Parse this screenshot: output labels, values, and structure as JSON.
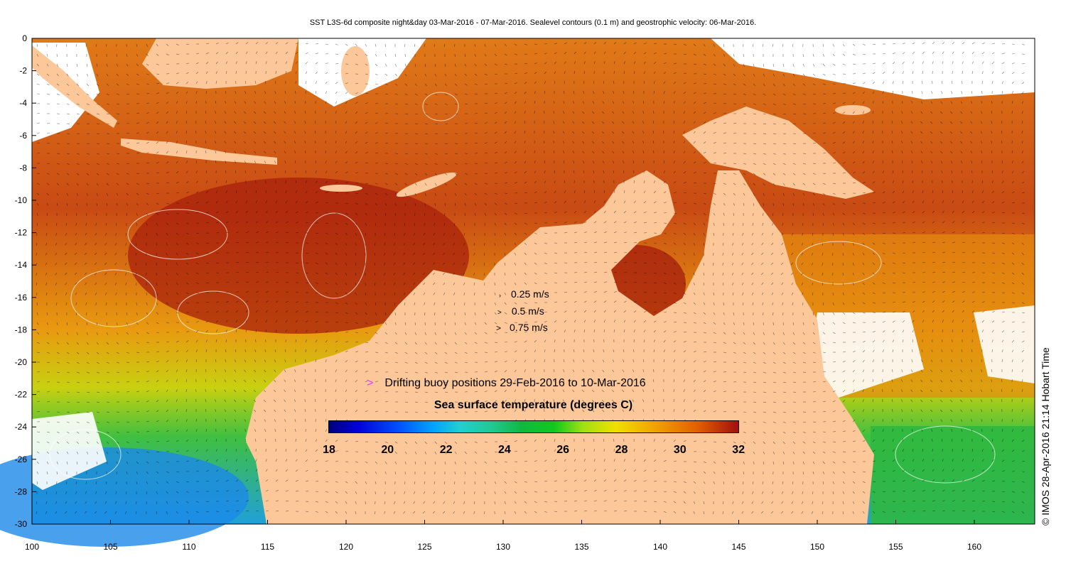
{
  "title": "SST L3S-6d composite night&day 03-Mar-2016 - 07-Mar-2016. Sealevel contours (0.1 m) and geostrophic velocity: 06-Mar-2016.",
  "axes": {
    "x_ticks": [
      "100",
      "105",
      "110",
      "115",
      "120",
      "125",
      "130",
      "135",
      "140",
      "145",
      "150",
      "155",
      "160"
    ],
    "y_ticks": [
      "0",
      "-2",
      "-4",
      "-6",
      "-8",
      "-10",
      "-12",
      "-14",
      "-16",
      "-18",
      "-20",
      "-22",
      "-24",
      "-26",
      "-28",
      "-30"
    ]
  },
  "velocity_legend": [
    "0.25 m/s",
    "0.5 m/s",
    "0.75 m/s"
  ],
  "buoy_legend": {
    "marker": ">",
    "text": "Drifting buoy positions 29-Feb-2016 to 10-Mar-2016"
  },
  "colorbar": {
    "title": "Sea surface temperature (degrees C)",
    "ticks": [
      "18",
      "20",
      "22",
      "24",
      "26",
      "28",
      "30",
      "32"
    ]
  },
  "credit": "© IMOS 28-Apr-2016 21:14 Hobart Time",
  "colors": {
    "land": "#fcc899",
    "warm": "#d2691e",
    "hot": "#b22a10",
    "cool": "#6cd018",
    "cold": "#1aa4e0"
  }
}
